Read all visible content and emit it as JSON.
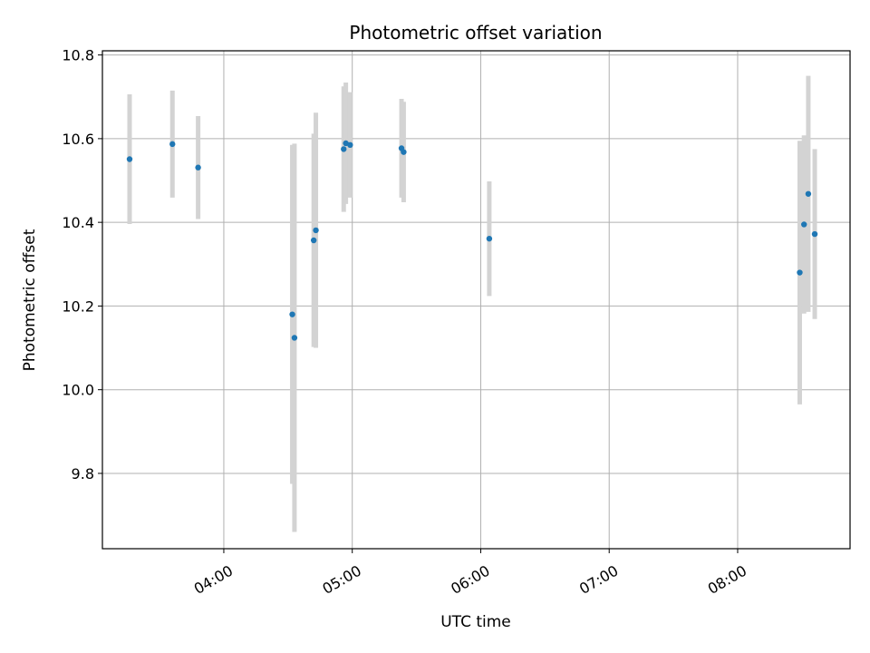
{
  "chart_data": {
    "type": "scatter",
    "title": "Photometric offset variation",
    "xlabel": "UTC time",
    "ylabel": "Photometric offset",
    "x_unit": "minutes since 00:00 UTC",
    "xlim": [
      183.3,
      532.5
    ],
    "ylim": [
      9.62,
      10.81
    ],
    "grid": true,
    "legend": "none",
    "x_ticks": [
      {
        "value": 240,
        "label": "04:00"
      },
      {
        "value": 300,
        "label": "05:00"
      },
      {
        "value": 360,
        "label": "06:00"
      },
      {
        "value": 420,
        "label": "07:00"
      },
      {
        "value": 480,
        "label": "08:00"
      }
    ],
    "y_ticks": [
      {
        "value": 9.8,
        "label": "9.8"
      },
      {
        "value": 10.0,
        "label": "10.0"
      },
      {
        "value": 10.2,
        "label": "10.2"
      },
      {
        "value": 10.4,
        "label": "10.4"
      },
      {
        "value": 10.6,
        "label": "10.6"
      },
      {
        "value": 10.8,
        "label": "10.8"
      }
    ],
    "colors": {
      "marker": "#1f77b4",
      "errorbar": "#d3d3d3",
      "grid": "#b0b0b0"
    },
    "points": [
      {
        "time": "03:16",
        "y": 10.551,
        "err": 0.155
      },
      {
        "time": "03:36",
        "y": 10.587,
        "err": 0.128
      },
      {
        "time": "03:48",
        "y": 10.531,
        "err": 0.123
      },
      {
        "time": "04:32",
        "y": 10.18,
        "err": 0.405
      },
      {
        "time": "04:33",
        "y": 10.124,
        "err": 0.464
      },
      {
        "time": "04:42",
        "y": 10.357,
        "err": 0.255
      },
      {
        "time": "04:43",
        "y": 10.381,
        "err": 0.281
      },
      {
        "time": "04:56",
        "y": 10.575,
        "err": 0.15
      },
      {
        "time": "04:57",
        "y": 10.589,
        "err": 0.145
      },
      {
        "time": "04:59",
        "y": 10.585,
        "err": 0.126
      },
      {
        "time": "05:23",
        "y": 10.577,
        "err": 0.118
      },
      {
        "time": "05:24",
        "y": 10.568,
        "err": 0.12
      },
      {
        "time": "06:04",
        "y": 10.361,
        "err": 0.137
      },
      {
        "time": "08:29",
        "y": 10.28,
        "err": 0.315
      },
      {
        "time": "08:31",
        "y": 10.395,
        "err": 0.213
      },
      {
        "time": "08:33",
        "y": 10.468,
        "err": 0.282
      },
      {
        "time": "08:36",
        "y": 10.372,
        "err": 0.203
      }
    ]
  }
}
